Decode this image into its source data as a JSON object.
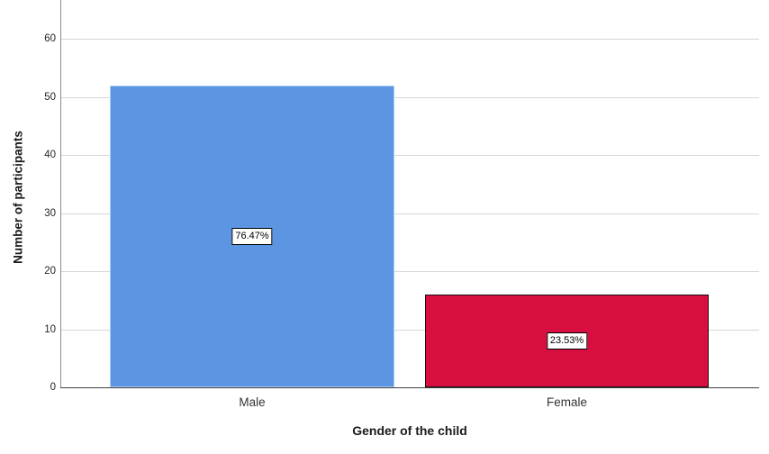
{
  "chart_data": {
    "type": "bar",
    "title": "",
    "xlabel": "Gender of the child",
    "ylabel": "Number of participants",
    "categories": [
      "Male",
      "Female"
    ],
    "values": [
      52,
      16
    ],
    "value_labels": [
      "76.47%",
      "23.53%"
    ],
    "series_colors": [
      "#5c96e2",
      "#d90e40"
    ],
    "bar_border_colors": [
      "#a9cdf2",
      "#111111"
    ],
    "yticks": [
      0,
      10,
      20,
      30,
      40,
      50,
      60
    ],
    "ylim": [
      0,
      66.7
    ],
    "grid": "horizontal",
    "legend": "none",
    "colors": {
      "gridline": "#d6d6d6",
      "y_axis_line": "#8c8c8c",
      "x_axis_line": "#404040",
      "tick_text": "#262626",
      "label_box_bg": "#ffffff",
      "label_box_border": "#000000"
    }
  }
}
